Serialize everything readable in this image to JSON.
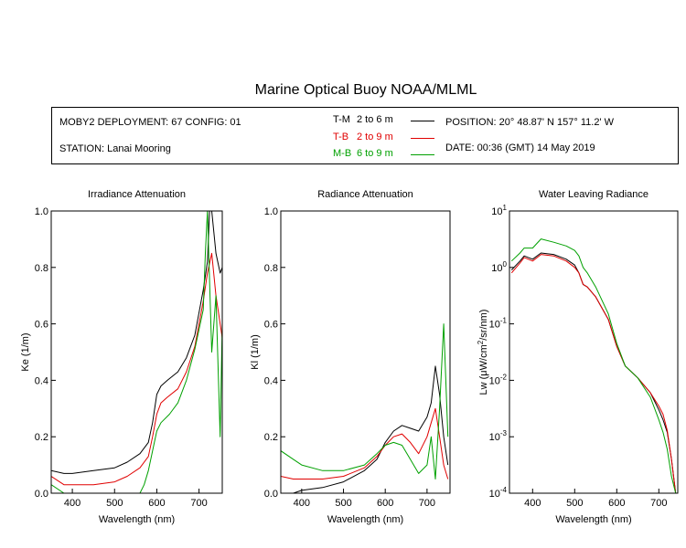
{
  "title": "Marine Optical Buoy NOAA/MLML",
  "info": {
    "deployment": "MOBY2 DEPLOYMENT: 67 CONFIG: 01",
    "station": "STATION: Lanai Mooring",
    "position": "POSITION: 20° 48.87' N   157° 11.2' W",
    "date": "DATE: 00:36 (GMT) 14 May 2019"
  },
  "legend": [
    {
      "name": "T-M",
      "range": "2 to 6  m",
      "color": "#000000"
    },
    {
      "name": "T-B",
      "range": "2 to 9  m",
      "color": "#e00000"
    },
    {
      "name": "M-B",
      "range": "6 to 9  m",
      "color": "#00a000"
    }
  ],
  "chart_data": [
    {
      "type": "line",
      "title": "Irradiance Attenuation",
      "xlabel": "Wavelength (nm)",
      "ylabel": "Ke  (1/m)",
      "xlim": [
        350,
        755
      ],
      "ylim": [
        0,
        1
      ],
      "xticks": [
        "400",
        "500",
        "600",
        "700"
      ],
      "yticks": [
        "0.0",
        "0.2",
        "0.4",
        "0.6",
        "0.8",
        "1.0"
      ],
      "series": [
        {
          "name": "T-M",
          "color": "#000000",
          "x": [
            350,
            380,
            400,
            450,
            500,
            530,
            560,
            580,
            590,
            600,
            610,
            625,
            650,
            670,
            690,
            700,
            710,
            720,
            725,
            730,
            740,
            750,
            755
          ],
          "y": [
            0.08,
            0.07,
            0.07,
            0.08,
            0.09,
            0.11,
            0.14,
            0.18,
            0.25,
            0.35,
            0.38,
            0.4,
            0.43,
            0.48,
            0.56,
            0.64,
            0.72,
            0.82,
            1.0,
            1.0,
            0.85,
            0.78,
            0.8
          ]
        },
        {
          "name": "T-B",
          "color": "#e00000",
          "x": [
            350,
            380,
            400,
            450,
            500,
            530,
            560,
            580,
            590,
            600,
            610,
            625,
            650,
            670,
            690,
            700,
            710,
            720,
            730,
            740,
            750,
            755
          ],
          "y": [
            0.06,
            0.03,
            0.03,
            0.03,
            0.04,
            0.06,
            0.09,
            0.13,
            0.2,
            0.28,
            0.32,
            0.34,
            0.37,
            0.43,
            0.52,
            0.6,
            0.68,
            0.78,
            0.85,
            0.7,
            0.6,
            0.55
          ]
        },
        {
          "name": "M-B",
          "color": "#00a000",
          "x": [
            350,
            380,
            400,
            450,
            500,
            530,
            560,
            570,
            580,
            590,
            600,
            610,
            630,
            650,
            670,
            690,
            700,
            710,
            715,
            720,
            730,
            740,
            750,
            755
          ],
          "y": [
            0.03,
            0.0,
            0.0,
            0.0,
            0.0,
            0.0,
            0.0,
            0.03,
            0.08,
            0.15,
            0.22,
            0.25,
            0.28,
            0.32,
            0.4,
            0.51,
            0.58,
            0.65,
            0.85,
            1.0,
            0.5,
            0.7,
            0.2,
            0.6
          ]
        }
      ]
    },
    {
      "type": "line",
      "title": "Radiance Attenuation",
      "xlabel": "Wavelength (nm)",
      "ylabel": "Kl  (1/m)",
      "xlim": [
        350,
        755
      ],
      "ylim": [
        0,
        1
      ],
      "xticks": [
        "400",
        "500",
        "600",
        "700"
      ],
      "yticks": [
        "0.0",
        "0.2",
        "0.4",
        "0.6",
        "0.8",
        "1.0"
      ],
      "series": [
        {
          "name": "T-M",
          "color": "#000000",
          "x": [
            350,
            380,
            400,
            450,
            500,
            550,
            580,
            600,
            620,
            640,
            660,
            680,
            700,
            710,
            720,
            730,
            740,
            750
          ],
          "y": [
            0.0,
            0.0,
            0.01,
            0.02,
            0.04,
            0.08,
            0.12,
            0.18,
            0.22,
            0.24,
            0.23,
            0.22,
            0.27,
            0.32,
            0.45,
            0.35,
            0.2,
            0.1
          ]
        },
        {
          "name": "T-B",
          "color": "#e00000",
          "x": [
            350,
            380,
            400,
            450,
            500,
            550,
            580,
            600,
            620,
            640,
            660,
            680,
            700,
            710,
            720,
            730,
            740,
            750
          ],
          "y": [
            0.06,
            0.05,
            0.05,
            0.05,
            0.06,
            0.09,
            0.13,
            0.17,
            0.2,
            0.21,
            0.18,
            0.14,
            0.2,
            0.25,
            0.3,
            0.2,
            0.1,
            0.05
          ]
        },
        {
          "name": "M-B",
          "color": "#00a000",
          "x": [
            350,
            380,
            400,
            450,
            500,
            550,
            580,
            600,
            620,
            640,
            660,
            680,
            700,
            710,
            720,
            730,
            740,
            750
          ],
          "y": [
            0.15,
            0.12,
            0.1,
            0.08,
            0.08,
            0.1,
            0.14,
            0.17,
            0.18,
            0.17,
            0.12,
            0.07,
            0.1,
            0.2,
            0.05,
            0.3,
            0.6,
            0.2
          ]
        }
      ]
    },
    {
      "type": "line",
      "title": "Water Leaving Radiance",
      "xlabel": "Wavelength (nm)",
      "ylabel": "Lw  (μW/cm²/sr/nm)",
      "xlim": [
        345,
        745
      ],
      "ylim": [
        0.0001,
        10
      ],
      "yscale": "log",
      "xticks": [
        "400",
        "500",
        "600",
        "700"
      ],
      "yticks": [
        "10^-4",
        "10^-3",
        "10^-2",
        "10^-1",
        "10^0",
        "10^1"
      ],
      "series": [
        {
          "name": "T-M",
          "color": "#000000",
          "x": [
            350,
            370,
            380,
            400,
            420,
            450,
            480,
            500,
            510,
            520,
            530,
            550,
            580,
            600,
            620,
            650,
            680,
            700,
            710,
            720,
            730,
            735,
            740
          ],
          "y": [
            0.9,
            1.3,
            1.6,
            1.4,
            1.8,
            1.7,
            1.4,
            1.1,
            0.8,
            0.5,
            0.45,
            0.3,
            0.12,
            0.04,
            0.018,
            0.011,
            0.006,
            0.003,
            0.002,
            0.0012,
            0.0004,
            0.0002,
            0.0001
          ]
        },
        {
          "name": "T-B",
          "color": "#e00000",
          "x": [
            350,
            370,
            380,
            400,
            420,
            450,
            480,
            500,
            510,
            520,
            530,
            550,
            580,
            600,
            620,
            650,
            680,
            700,
            710,
            720,
            730,
            735,
            740
          ],
          "y": [
            0.8,
            1.2,
            1.5,
            1.3,
            1.7,
            1.6,
            1.3,
            1.0,
            0.8,
            0.5,
            0.45,
            0.3,
            0.12,
            0.04,
            0.018,
            0.011,
            0.006,
            0.0035,
            0.0025,
            0.0013,
            0.0004,
            0.0002,
            0.0001
          ]
        },
        {
          "name": "M-B",
          "color": "#00a000",
          "x": [
            350,
            370,
            380,
            400,
            420,
            450,
            480,
            500,
            510,
            520,
            530,
            550,
            580,
            600,
            620,
            650,
            680,
            700,
            710,
            720,
            730,
            740
          ],
          "y": [
            1.3,
            1.8,
            2.2,
            2.2,
            3.2,
            2.8,
            2.4,
            2.0,
            1.6,
            1.0,
            0.8,
            0.45,
            0.15,
            0.045,
            0.018,
            0.011,
            0.005,
            0.002,
            0.0012,
            0.0006,
            0.0002,
            0.0001
          ]
        }
      ]
    }
  ]
}
